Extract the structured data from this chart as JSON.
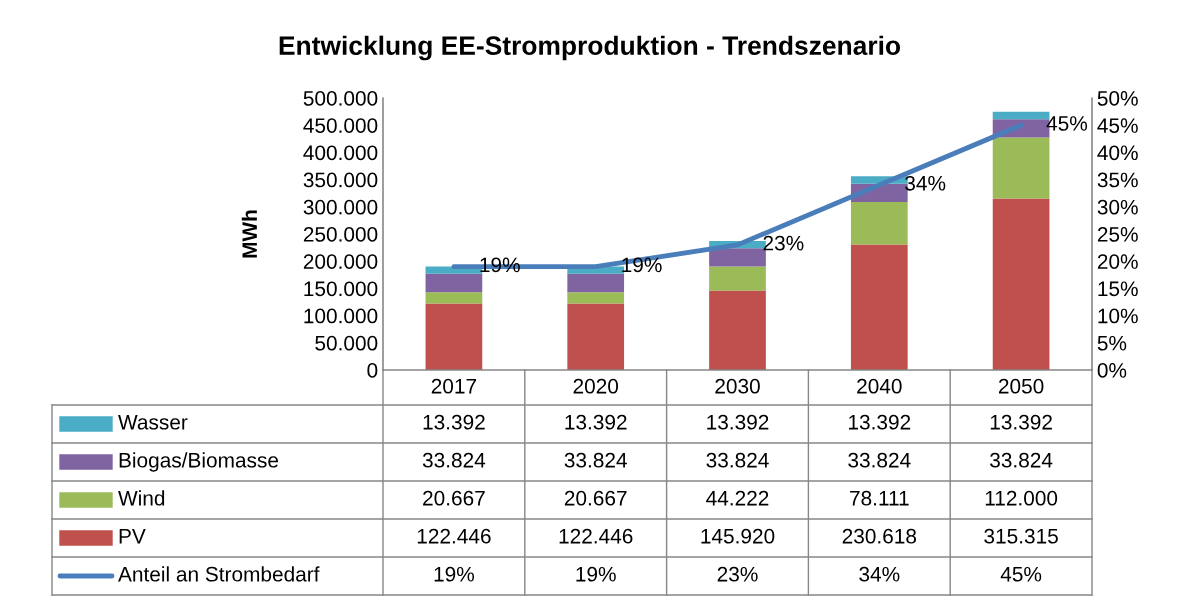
{
  "chart_data": {
    "type": "bar",
    "title": "Entwicklung EE-Stromproduktion - Trendszenario",
    "ylabel": "MWh",
    "categories": [
      "2017",
      "2020",
      "2030",
      "2040",
      "2050"
    ],
    "stacked": true,
    "legend": "bottom",
    "grid": false,
    "marker": "none",
    "ylim": [
      0,
      500000
    ],
    "yticks": [
      {
        "value": 0,
        "label": "0"
      },
      {
        "value": 50000,
        "label": "50.000"
      },
      {
        "value": 100000,
        "label": "100.000"
      },
      {
        "value": 150000,
        "label": "150.000"
      },
      {
        "value": 200000,
        "label": "200.000"
      },
      {
        "value": 250000,
        "label": "250.000"
      },
      {
        "value": 300000,
        "label": "300.000"
      },
      {
        "value": 350000,
        "label": "350.000"
      },
      {
        "value": 400000,
        "label": "400.000"
      },
      {
        "value": 450000,
        "label": "450.000"
      },
      {
        "value": 500000,
        "label": "500.000"
      }
    ],
    "y2lim": [
      0,
      50
    ],
    "y2ticks": [
      {
        "value": 0,
        "label": "0%"
      },
      {
        "value": 5,
        "label": "5%"
      },
      {
        "value": 10,
        "label": "10%"
      },
      {
        "value": 15,
        "label": "15%"
      },
      {
        "value": 20,
        "label": "20%"
      },
      {
        "value": 25,
        "label": "25%"
      },
      {
        "value": 30,
        "label": "30%"
      },
      {
        "value": 35,
        "label": "35%"
      },
      {
        "value": 40,
        "label": "40%"
      },
      {
        "value": 45,
        "label": "45%"
      },
      {
        "value": 50,
        "label": "50%"
      }
    ],
    "series": [
      {
        "name": "PV",
        "color": "#c0504d",
        "values": [
          122446,
          122446,
          145920,
          230618,
          315315
        ],
        "value_labels": [
          "122.446",
          "122.446",
          "145.920",
          "230.618",
          "315.315"
        ]
      },
      {
        "name": "Wind",
        "color": "#9bbb59",
        "values": [
          20667,
          20667,
          44222,
          78111,
          112000
        ],
        "value_labels": [
          "20.667",
          "20.667",
          "44.222",
          "78.111",
          "112.000"
        ]
      },
      {
        "name": "Biogas/Biomasse",
        "color": "#8064a2",
        "values": [
          33824,
          33824,
          33824,
          33824,
          33824
        ],
        "value_labels": [
          "33.824",
          "33.824",
          "33.824",
          "33.824",
          "33.824"
        ]
      },
      {
        "name": "Wasser",
        "color": "#4bacc6",
        "values": [
          13392,
          13392,
          13392,
          13392,
          13392
        ],
        "value_labels": [
          "13.392",
          "13.392",
          "13.392",
          "13.392",
          "13.392"
        ]
      },
      {
        "name": "Anteil an Strombedarf",
        "type": "line",
        "axis": "y2",
        "color": "#4a7ebb",
        "values": [
          19,
          19,
          23,
          34,
          45
        ],
        "value_labels": [
          "19%",
          "19%",
          "23%",
          "34%",
          "45%"
        ]
      }
    ]
  }
}
